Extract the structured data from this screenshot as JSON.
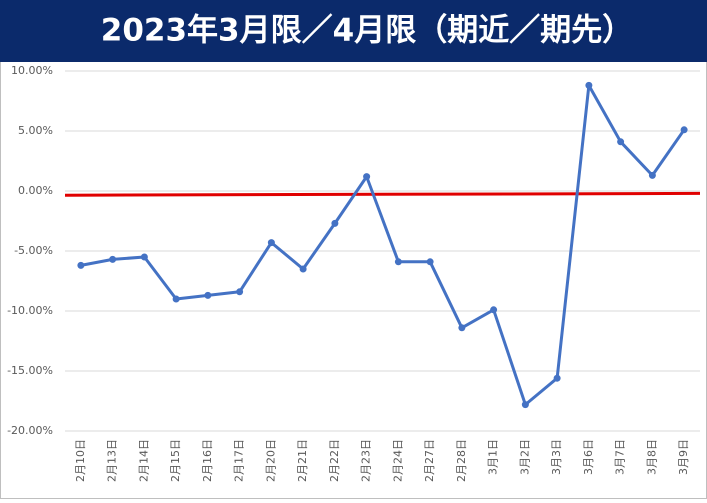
{
  "chart_data": {
    "type": "line",
    "title": "2023年3月限／4月限（期近／期先）",
    "categories": [
      "2月10日",
      "2月13日",
      "2月14日",
      "2月15日",
      "2月16日",
      "2月17日",
      "2月20日",
      "2月21日",
      "2月22日",
      "2月23日",
      "2月24日",
      "2月27日",
      "2月28日",
      "3月1日",
      "3月2日",
      "3月3日",
      "3月6日",
      "3月7日",
      "3月8日",
      "3月9日"
    ],
    "values": [
      -6.2,
      -5.7,
      -5.5,
      -9.0,
      -8.7,
      -8.4,
      -4.3,
      -6.5,
      -2.7,
      1.2,
      -5.9,
      -5.9,
      -11.4,
      -9.9,
      -17.8,
      -15.6,
      8.8,
      4.1,
      1.3,
      5.1
    ],
    "color": "#4472c4",
    "red_line": {
      "color": "#e00000",
      "y_start": -0.35,
      "y_end": -0.2
    },
    "ylim": [
      -20,
      10
    ],
    "yticks": [
      {
        "value": -20,
        "label": "-20.00%"
      },
      {
        "value": -15,
        "label": "-15.00%"
      },
      {
        "value": -10,
        "label": "-10.00%"
      },
      {
        "value": -5,
        "label": "-5.00%"
      },
      {
        "value": 0,
        "label": "0.00%"
      },
      {
        "value": 5,
        "label": "5.00%"
      },
      {
        "value": 10,
        "label": "10.00%"
      }
    ],
    "grid": true
  }
}
